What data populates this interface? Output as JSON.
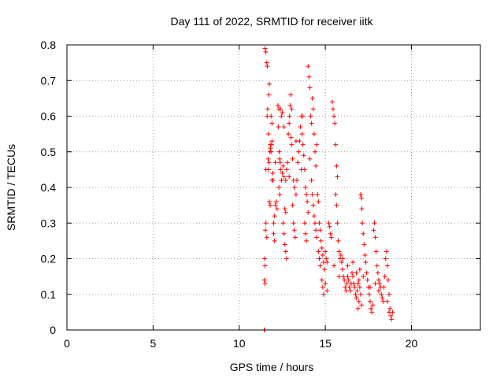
{
  "chart_data": {
    "type": "scatter",
    "title": "Day 111 of 2022, SRMTID for receiver iitk",
    "xlabel": "GPS time / hours",
    "ylabel": "SRMTID / TECUs",
    "xlim": [
      0,
      24
    ],
    "ylim": [
      0,
      0.8
    ],
    "x_ticks": [
      0,
      5,
      10,
      15,
      20
    ],
    "x_tick_labels": [
      "0",
      "5",
      "10",
      "15",
      "20"
    ],
    "y_ticks": [
      0,
      0.1,
      0.2,
      0.3,
      0.4,
      0.5,
      0.6,
      0.7,
      0.8
    ],
    "y_tick_labels": [
      "0",
      "0.1",
      "0.2",
      "0.3",
      "0.4",
      "0.5",
      "0.6",
      "0.7",
      "0.8"
    ],
    "grid": true,
    "marker": "+",
    "color": "#ff0000",
    "series": [
      {
        "name": "SRMTID",
        "points": [
          [
            11.45,
            0.0
          ],
          [
            11.47,
            0.0
          ],
          [
            11.5,
            0.79
          ],
          [
            11.55,
            0.78
          ],
          [
            11.6,
            0.75
          ],
          [
            11.63,
            0.74
          ],
          [
            11.52,
            0.28
          ],
          [
            11.55,
            0.3
          ],
          [
            11.48,
            0.2
          ],
          [
            11.5,
            0.18
          ],
          [
            11.46,
            0.14
          ],
          [
            11.5,
            0.13
          ],
          [
            11.6,
            0.26
          ],
          [
            11.62,
            0.6
          ],
          [
            11.65,
            0.62
          ],
          [
            11.7,
            0.55
          ],
          [
            11.72,
            0.66
          ],
          [
            11.75,
            0.69
          ],
          [
            11.68,
            0.48
          ],
          [
            11.7,
            0.45
          ],
          [
            11.73,
            0.47
          ],
          [
            11.78,
            0.5
          ],
          [
            11.8,
            0.52
          ],
          [
            11.82,
            0.51
          ],
          [
            11.85,
            0.5
          ],
          [
            11.88,
            0.52
          ],
          [
            11.9,
            0.53
          ],
          [
            11.75,
            0.36
          ],
          [
            11.8,
            0.35
          ],
          [
            11.85,
            0.6
          ],
          [
            11.9,
            0.58
          ],
          [
            11.95,
            0.44
          ],
          [
            11.97,
            0.42
          ],
          [
            12.0,
            0.3
          ],
          [
            12.05,
            0.32
          ],
          [
            12.0,
            0.27
          ],
          [
            12.05,
            0.25
          ],
          [
            12.1,
            0.35
          ],
          [
            12.15,
            0.36
          ],
          [
            12.2,
            0.34
          ],
          [
            12.25,
            0.63
          ],
          [
            12.3,
            0.62
          ],
          [
            12.27,
            0.57
          ],
          [
            12.32,
            0.5
          ],
          [
            12.35,
            0.48
          ],
          [
            12.38,
            0.47
          ],
          [
            12.4,
            0.45
          ],
          [
            12.45,
            0.42
          ],
          [
            12.5,
            0.44
          ],
          [
            12.3,
            0.4
          ],
          [
            12.35,
            0.38
          ],
          [
            12.4,
            0.62
          ],
          [
            12.45,
            0.6
          ],
          [
            12.5,
            0.61
          ],
          [
            12.55,
            0.46
          ],
          [
            12.6,
            0.43
          ],
          [
            12.65,
            0.34
          ],
          [
            12.7,
            0.33
          ],
          [
            12.55,
            0.3
          ],
          [
            12.6,
            0.27
          ],
          [
            12.65,
            0.24
          ],
          [
            12.7,
            0.22
          ],
          [
            12.75,
            0.2
          ],
          [
            12.7,
            0.42
          ],
          [
            12.75,
            0.45
          ],
          [
            12.8,
            0.47
          ],
          [
            12.85,
            0.55
          ],
          [
            12.9,
            0.58
          ],
          [
            12.92,
            0.6
          ],
          [
            12.95,
            0.63
          ],
          [
            13.0,
            0.66
          ],
          [
            13.05,
            0.62
          ],
          [
            13.0,
            0.54
          ],
          [
            13.05,
            0.52
          ],
          [
            13.1,
            0.48
          ],
          [
            13.15,
            0.42
          ],
          [
            13.2,
            0.4
          ],
          [
            13.1,
            0.35
          ],
          [
            13.15,
            0.3
          ],
          [
            13.2,
            0.28
          ],
          [
            13.25,
            0.26
          ],
          [
            13.3,
            0.38
          ],
          [
            13.35,
            0.42
          ],
          [
            13.4,
            0.47
          ],
          [
            13.45,
            0.5
          ],
          [
            13.5,
            0.53
          ],
          [
            13.55,
            0.57
          ],
          [
            13.6,
            0.6
          ],
          [
            13.65,
            0.55
          ],
          [
            13.7,
            0.52
          ],
          [
            13.75,
            0.49
          ],
          [
            13.8,
            0.45
          ],
          [
            13.85,
            0.4
          ],
          [
            13.9,
            0.38
          ],
          [
            13.95,
            0.36
          ],
          [
            14.0,
            0.33
          ],
          [
            13.8,
            0.3
          ],
          [
            13.85,
            0.27
          ],
          [
            13.9,
            0.25
          ],
          [
            14.0,
            0.74
          ],
          [
            14.05,
            0.71
          ],
          [
            14.1,
            0.68
          ],
          [
            14.15,
            0.6
          ],
          [
            14.2,
            0.58
          ],
          [
            14.25,
            0.65
          ],
          [
            14.3,
            0.62
          ],
          [
            14.35,
            0.55
          ],
          [
            14.4,
            0.5
          ],
          [
            14.45,
            0.46
          ],
          [
            14.2,
            0.42
          ],
          [
            14.25,
            0.38
          ],
          [
            14.3,
            0.35
          ],
          [
            14.35,
            0.32
          ],
          [
            14.4,
            0.3
          ],
          [
            14.45,
            0.28
          ],
          [
            14.5,
            0.26
          ],
          [
            14.55,
            0.38
          ],
          [
            14.6,
            0.36
          ],
          [
            14.65,
            0.3
          ],
          [
            14.7,
            0.28
          ],
          [
            14.6,
            0.22
          ],
          [
            14.65,
            0.2
          ],
          [
            14.7,
            0.18
          ],
          [
            14.75,
            0.25
          ],
          [
            14.8,
            0.23
          ],
          [
            14.85,
            0.21
          ],
          [
            14.9,
            0.19
          ],
          [
            14.95,
            0.17
          ],
          [
            15.0,
            0.22
          ],
          [
            15.05,
            0.2
          ],
          [
            15.1,
            0.19
          ],
          [
            14.8,
            0.14
          ],
          [
            14.85,
            0.12
          ],
          [
            14.9,
            0.1
          ],
          [
            15.0,
            0.13
          ],
          [
            15.1,
            0.11
          ],
          [
            15.2,
            0.3
          ],
          [
            15.25,
            0.29
          ],
          [
            15.3,
            0.27
          ],
          [
            15.35,
            0.26
          ],
          [
            15.4,
            0.64
          ],
          [
            15.45,
            0.62
          ],
          [
            15.5,
            0.6
          ],
          [
            15.55,
            0.58
          ],
          [
            15.6,
            0.52
          ],
          [
            15.65,
            0.46
          ],
          [
            15.7,
            0.43
          ],
          [
            15.6,
            0.38
          ],
          [
            15.65,
            0.35
          ],
          [
            15.7,
            0.3
          ],
          [
            15.75,
            0.25
          ],
          [
            15.8,
            0.22
          ],
          [
            15.85,
            0.2
          ],
          [
            15.9,
            0.21
          ],
          [
            15.95,
            0.19
          ],
          [
            16.0,
            0.17
          ],
          [
            16.05,
            0.15
          ],
          [
            16.1,
            0.14
          ],
          [
            16.15,
            0.12
          ],
          [
            16.2,
            0.11
          ],
          [
            16.25,
            0.13
          ],
          [
            16.3,
            0.15
          ],
          [
            16.35,
            0.14
          ],
          [
            16.4,
            0.12
          ],
          [
            16.45,
            0.11
          ],
          [
            16.5,
            0.13
          ],
          [
            16.55,
            0.16
          ],
          [
            16.6,
            0.15
          ],
          [
            16.65,
            0.13
          ],
          [
            16.7,
            0.12
          ],
          [
            16.75,
            0.1
          ],
          [
            16.8,
            0.09
          ],
          [
            16.85,
            0.11
          ],
          [
            16.9,
            0.13
          ],
          [
            16.95,
            0.14
          ],
          [
            17.0,
            0.12
          ],
          [
            17.05,
            0.1
          ],
          [
            17.1,
            0.07
          ],
          [
            16.9,
            0.06
          ],
          [
            16.95,
            0.08
          ],
          [
            17.0,
            0.17
          ],
          [
            17.05,
            0.38
          ],
          [
            17.1,
            0.37
          ],
          [
            17.12,
            0.34
          ],
          [
            17.15,
            0.3
          ],
          [
            17.2,
            0.27
          ],
          [
            17.25,
            0.24
          ],
          [
            17.3,
            0.21
          ],
          [
            17.35,
            0.19
          ],
          [
            17.4,
            0.16
          ],
          [
            17.45,
            0.14
          ],
          [
            17.5,
            0.12
          ],
          [
            17.55,
            0.1
          ],
          [
            17.6,
            0.08
          ],
          [
            17.65,
            0.06
          ],
          [
            17.7,
            0.05
          ],
          [
            17.75,
            0.07
          ],
          [
            17.8,
            0.28
          ],
          [
            17.85,
            0.3
          ],
          [
            17.9,
            0.26
          ],
          [
            17.95,
            0.22
          ],
          [
            18.0,
            0.18
          ],
          [
            18.05,
            0.16
          ],
          [
            18.1,
            0.14
          ],
          [
            18.15,
            0.13
          ],
          [
            18.2,
            0.12
          ],
          [
            18.25,
            0.1
          ],
          [
            18.3,
            0.09
          ],
          [
            18.35,
            0.08
          ],
          [
            18.4,
            0.12
          ],
          [
            18.45,
            0.15
          ],
          [
            18.5,
            0.2
          ],
          [
            18.55,
            0.22
          ],
          [
            18.6,
            0.18
          ],
          [
            18.65,
            0.14
          ],
          [
            18.7,
            0.1
          ],
          [
            18.75,
            0.06
          ],
          [
            18.8,
            0.04
          ],
          [
            18.85,
            0.03
          ],
          [
            18.9,
            0.05
          ],
          [
            18.6,
            0.08
          ],
          [
            18.7,
            0.05
          ],
          [
            16.3,
            0.18
          ],
          [
            16.6,
            0.19
          ],
          [
            17.2,
            0.15
          ],
          [
            17.9,
            0.13
          ],
          [
            18.1,
            0.11
          ],
          [
            17.6,
            0.12
          ],
          [
            16.8,
            0.16
          ],
          [
            16.0,
            0.2
          ],
          [
            15.8,
            0.15
          ],
          [
            15.5,
            0.18
          ],
          [
            13.6,
            0.45
          ],
          [
            13.7,
            0.6
          ],
          [
            12.9,
            0.43
          ],
          [
            12.6,
            0.57
          ],
          [
            12.1,
            0.47
          ],
          [
            11.9,
            0.42
          ],
          [
            13.3,
            0.53
          ],
          [
            14.1,
            0.48
          ],
          [
            14.5,
            0.52
          ],
          [
            11.55,
            0.45
          ]
        ]
      }
    ]
  }
}
